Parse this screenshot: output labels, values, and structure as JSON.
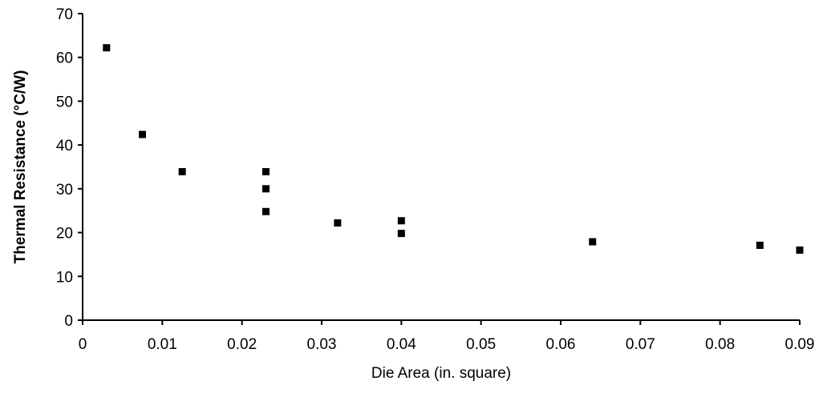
{
  "chart_data": {
    "type": "scatter",
    "title": "",
    "xlabel": "Die Area (in. square)",
    "ylabel": "Thermal Resistance (°C/W)",
    "xlim": [
      0,
      0.09
    ],
    "ylim": [
      0,
      70
    ],
    "x_ticks": [
      "0",
      "0.01",
      "0.02",
      "0.03",
      "0.04",
      "0.05",
      "0.06",
      "0.07",
      "0.08",
      "0.09"
    ],
    "y_ticks": [
      "0",
      "10",
      "20",
      "30",
      "40",
      "50",
      "60",
      "70"
    ],
    "grid": false,
    "legend": "none",
    "marker": "square",
    "color": "#000000",
    "series": [
      {
        "points": [
          {
            "x": 0.003,
            "y": 62.2
          },
          {
            "x": 0.0075,
            "y": 42.4
          },
          {
            "x": 0.0125,
            "y": 33.9
          },
          {
            "x": 0.023,
            "y": 33.9
          },
          {
            "x": 0.023,
            "y": 30.0
          },
          {
            "x": 0.023,
            "y": 24.8
          },
          {
            "x": 0.032,
            "y": 22.2
          },
          {
            "x": 0.04,
            "y": 22.7
          },
          {
            "x": 0.04,
            "y": 19.8
          },
          {
            "x": 0.064,
            "y": 17.9
          },
          {
            "x": 0.085,
            "y": 17.1
          },
          {
            "x": 0.09,
            "y": 16.0
          }
        ]
      }
    ]
  }
}
